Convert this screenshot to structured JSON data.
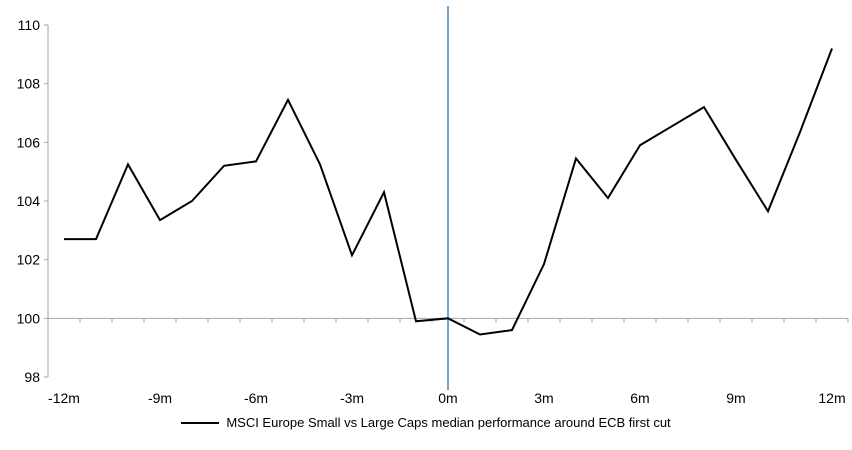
{
  "chart_data": {
    "type": "line",
    "title": "",
    "x_axis": {
      "unit": "months relative to ECB first cut",
      "tick_labels": [
        "-12m",
        "-9m",
        "-6m",
        "-3m",
        "0m",
        "3m",
        "6m",
        "9m",
        "12m"
      ],
      "tick_months": [
        -12,
        -9,
        -6,
        -3,
        0,
        3,
        6,
        9,
        12
      ],
      "xlim": [
        -12,
        12
      ],
      "minor_tick_every_month": true
    },
    "y_axis": {
      "tick_labels": [
        "98",
        "100",
        "102",
        "104",
        "106",
        "108",
        "110"
      ],
      "ticks": [
        98,
        100,
        102,
        104,
        106,
        108,
        110
      ],
      "ylim": [
        98,
        110
      ]
    },
    "series": [
      {
        "name": "MSCI Europe Small vs Large Caps median performance around ECB first cut",
        "color": "#000000",
        "x": [
          -12,
          -11,
          -10,
          -9,
          -8,
          -7,
          -6,
          -5,
          -4,
          -3,
          -2,
          -1,
          0,
          1,
          2,
          3,
          4,
          5,
          6,
          7,
          8,
          9,
          10,
          11,
          12
        ],
        "values": [
          102.7,
          102.7,
          105.25,
          103.35,
          104.0,
          105.2,
          105.35,
          107.45,
          105.25,
          102.15,
          104.3,
          99.9,
          100.0,
          99.45,
          99.6,
          101.85,
          105.45,
          104.1,
          105.9,
          106.55,
          107.2,
          105.4,
          103.65,
          106.35,
          109.2
        ]
      }
    ],
    "event_line": {
      "x": 0,
      "color": "#74A3CD"
    },
    "baseline": {
      "y": 100,
      "color": "#A6A6A6"
    },
    "axis_color": "#A6A6A6",
    "text_color": "#000000",
    "grid": "single horizontal gridline at y=100",
    "legend_position": "bottom-center"
  }
}
